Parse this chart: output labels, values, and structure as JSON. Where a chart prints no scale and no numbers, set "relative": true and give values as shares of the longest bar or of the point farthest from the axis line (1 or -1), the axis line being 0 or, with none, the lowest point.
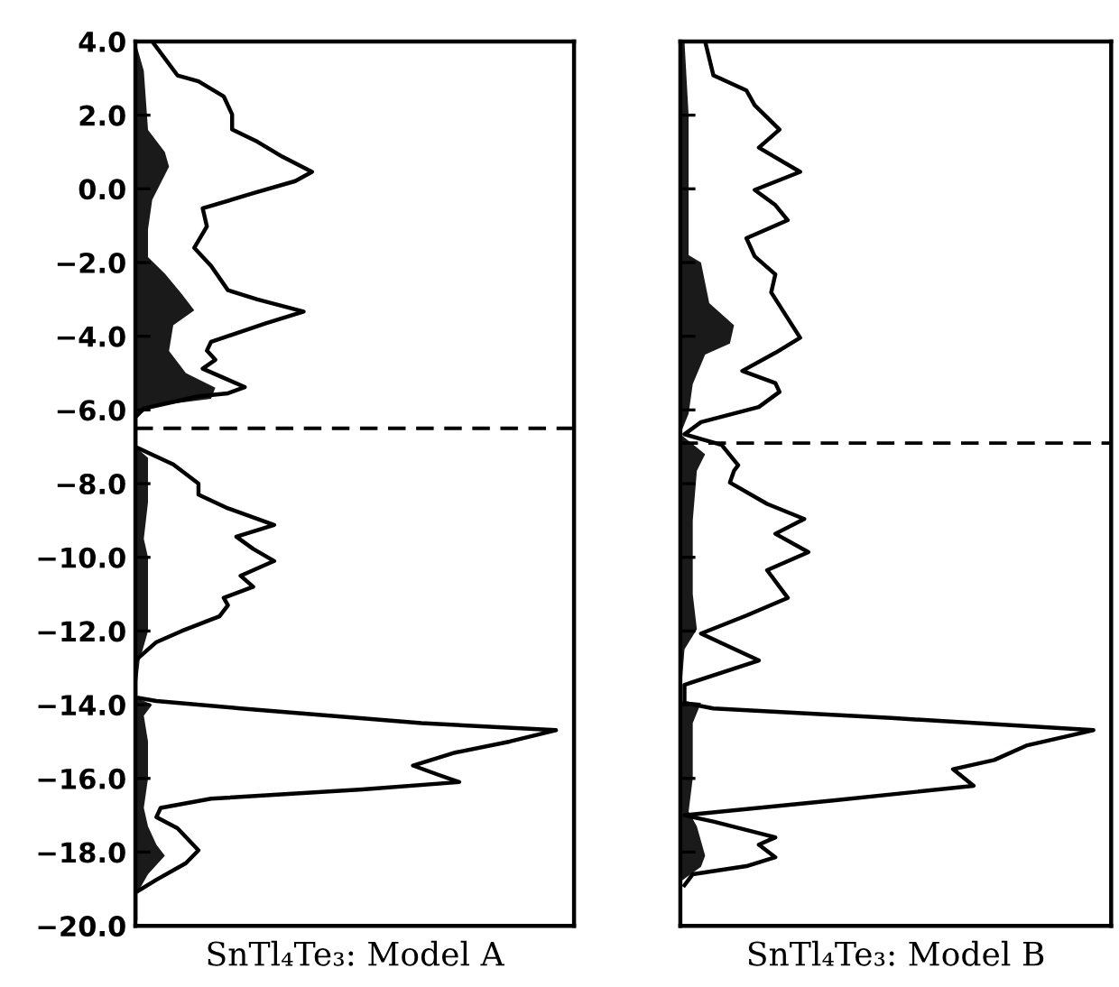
{
  "chart_data": [
    {
      "type": "line",
      "orientation": "horizontal",
      "relative": true,
      "xlabel": "SnTl₄Te₃: Model A",
      "ylim": [
        -20,
        4
      ],
      "yticks": [
        {
          "value": 4,
          "label": "4.0"
        },
        {
          "value": 2,
          "label": "2.0"
        },
        {
          "value": 0,
          "label": "0.0"
        },
        {
          "value": -2,
          "label": "−2.0"
        },
        {
          "value": -4,
          "label": "−4.0"
        },
        {
          "value": -6,
          "label": "−6.0"
        },
        {
          "value": -8,
          "label": "−8.0"
        },
        {
          "value": -10,
          "label": "−10.0"
        },
        {
          "value": -12,
          "label": "−12.0"
        },
        {
          "value": -14,
          "label": "−14.0"
        },
        {
          "value": -16,
          "label": "−16.0"
        },
        {
          "value": -18,
          "label": "−18.0"
        },
        {
          "value": -20,
          "label": "−20.0"
        }
      ],
      "tick_labels": "y",
      "grid": false,
      "legend": false,
      "ref_lines": [
        {
          "axis": "y",
          "value": -6.5,
          "color": "#000000",
          "line_style": "dashed"
        }
      ],
      "series": [
        {
          "type": "area",
          "color": "#1a1a1a",
          "x": [
            4.0,
            3.2,
            1.6,
            1.0,
            0.6,
            -0.3,
            -1.1,
            -1.85,
            -2.3,
            -2.85,
            -3.3,
            -3.7,
            -4.4,
            -4.7,
            -5.0,
            -5.4,
            -5.7,
            -5.9,
            -6.2,
            -7.0,
            -7.3,
            -7.5,
            -8.5,
            -9.5,
            -10.0,
            -11.0,
            -12.0,
            -12.8,
            -13.8,
            -14.0,
            -14.3,
            -15.0,
            -16.0,
            -16.8,
            -17.3,
            -17.8,
            -18.1,
            -18.6,
            -19.2,
            -20.0
          ],
          "values": [
            0,
            0.02,
            0.03,
            0.07,
            0.08,
            0.04,
            0.03,
            0.03,
            0.07,
            0.11,
            0.14,
            0.09,
            0.08,
            0.1,
            0.12,
            0.19,
            0.18,
            0.04,
            0,
            0,
            0.03,
            0.03,
            0.03,
            0.02,
            0.03,
            0.03,
            0.03,
            0.01,
            0,
            0.04,
            0.02,
            0.03,
            0.03,
            0.02,
            0.03,
            0.05,
            0.07,
            0.03,
            0,
            0
          ]
        },
        {
          "color": "#000000",
          "x": [
            4.0,
            3.08,
            2.92,
            2.51,
            2.02,
            1.61,
            1.28,
            0.87,
            0.46,
            0.21,
            -0.12,
            -0.53,
            -1.02,
            -1.6,
            -2.09,
            -2.75,
            -3.0,
            -3.33,
            -3.65,
            -4.15,
            -4.39,
            -4.64,
            -4.88,
            -5.18,
            -5.38,
            -5.55,
            -5.63,
            -5.96,
            -6.2,
            -7.0,
            -7.48,
            -8.0,
            -8.3,
            -8.67,
            -9.12,
            -9.44,
            -9.77,
            -10.1,
            -10.5,
            -10.8,
            -11.1,
            -11.3,
            -11.6,
            -12.0,
            -12.3,
            -12.8,
            -13.8,
            -13.9,
            -14.1,
            -14.5,
            -14.69,
            -15.0,
            -15.3,
            -15.65,
            -15.9,
            -16.1,
            -16.3,
            -16.55,
            -16.8,
            -17.05,
            -17.35,
            -17.95,
            -18.3,
            -18.75,
            -19.1,
            -19.8
          ],
          "values": [
            0.04,
            0.1,
            0.15,
            0.21,
            0.23,
            0.23,
            0.29,
            0.35,
            0.42,
            0.38,
            0.28,
            0.16,
            0.17,
            0.14,
            0.18,
            0.22,
            0.29,
            0.4,
            0.31,
            0.18,
            0.17,
            0.19,
            0.16,
            0.22,
            0.26,
            0.22,
            0.15,
            0.02,
            0,
            0,
            0.09,
            0.15,
            0.15,
            0.22,
            0.33,
            0.24,
            0.28,
            0.33,
            0.25,
            0.28,
            0.21,
            0.22,
            0.2,
            0.11,
            0.05,
            0,
            0,
            0.05,
            0.25,
            0.68,
            1.0,
            0.89,
            0.76,
            0.66,
            0.72,
            0.77,
            0.54,
            0.18,
            0.06,
            0.05,
            0.1,
            0.15,
            0.12,
            0.05,
            0,
            0
          ]
        }
      ]
    },
    {
      "type": "line",
      "orientation": "horizontal",
      "relative": true,
      "xlabel": "SnTl₄Te₃: Model B",
      "ylim": [
        -20,
        4
      ],
      "yticks": [
        {
          "value": 4,
          "label": null
        },
        {
          "value": 2,
          "label": null
        },
        {
          "value": 0,
          "label": null
        },
        {
          "value": -2,
          "label": null
        },
        {
          "value": -4,
          "label": null
        },
        {
          "value": -6,
          "label": null
        },
        {
          "value": -8,
          "label": null
        },
        {
          "value": -10,
          "label": null
        },
        {
          "value": -12,
          "label": null
        },
        {
          "value": -14,
          "label": null
        },
        {
          "value": -16,
          "label": null
        },
        {
          "value": -18,
          "label": null
        },
        {
          "value": -20,
          "label": null
        }
      ],
      "tick_labels": false,
      "grid": false,
      "legend": false,
      "ref_lines": [
        {
          "axis": "y",
          "value": -6.9,
          "color": "#000000",
          "line_style": "dashed"
        }
      ],
      "series": [
        {
          "type": "area",
          "color": "#1a1a1a",
          "x": [
            4.0,
            2.0,
            0.0,
            -1.8,
            -2.0,
            -3.1,
            -3.7,
            -4.2,
            -4.5,
            -5.3,
            -6.1,
            -6.66,
            -7.2,
            -7.65,
            -9.0,
            -11.0,
            -11.95,
            -12.5,
            -13.9,
            -13.95,
            -14.5,
            -16.0,
            -16.9,
            -17.3,
            -18.1,
            -18.4,
            -18.8,
            -20.0
          ],
          "values": [
            0.01,
            0.02,
            0.02,
            0.02,
            0.05,
            0.07,
            0.13,
            0.12,
            0.06,
            0.03,
            0.02,
            0,
            0.06,
            0.04,
            0.03,
            0.03,
            0.04,
            0.01,
            0,
            0.05,
            0.03,
            0.03,
            0.02,
            0.04,
            0.06,
            0.05,
            0,
            0
          ]
        },
        {
          "color": "#000000",
          "x": [
            4.0,
            3.08,
            2.67,
            2.27,
            1.61,
            1.12,
            0.46,
            -0.03,
            -0.44,
            -0.85,
            -1.34,
            -1.83,
            -2.32,
            -2.81,
            -4.04,
            -4.45,
            -4.94,
            -5.27,
            -5.51,
            -5.92,
            -6.33,
            -6.66,
            -6.95,
            -7.5,
            -7.65,
            -7.97,
            -8.55,
            -8.96,
            -9.36,
            -9.86,
            -10.35,
            -11.1,
            -11.58,
            -12.07,
            -12.8,
            -13.46,
            -13.95,
            -14.1,
            -14.36,
            -14.69,
            -15.1,
            -15.5,
            -15.75,
            -16.2,
            -16.6,
            -17.0,
            -17.17,
            -17.6,
            -17.8,
            -18.14,
            -18.38,
            -18.6,
            -18.9
          ],
          "values": [
            0.06,
            0.08,
            0.16,
            0.18,
            0.24,
            0.19,
            0.29,
            0.18,
            0.23,
            0.26,
            0.16,
            0.18,
            0.23,
            0.22,
            0.29,
            0.23,
            0.15,
            0.23,
            0.24,
            0.19,
            0.05,
            0.01,
            0.1,
            0.14,
            0.13,
            0.12,
            0.21,
            0.3,
            0.23,
            0.31,
            0.21,
            0.26,
            0.16,
            0.05,
            0.19,
            0.01,
            0.01,
            0.08,
            0.51,
            1.0,
            0.84,
            0.76,
            0.66,
            0.71,
            0.37,
            0.01,
            0.08,
            0.23,
            0.19,
            0.23,
            0.16,
            0.03,
            0.01
          ]
        }
      ]
    }
  ]
}
